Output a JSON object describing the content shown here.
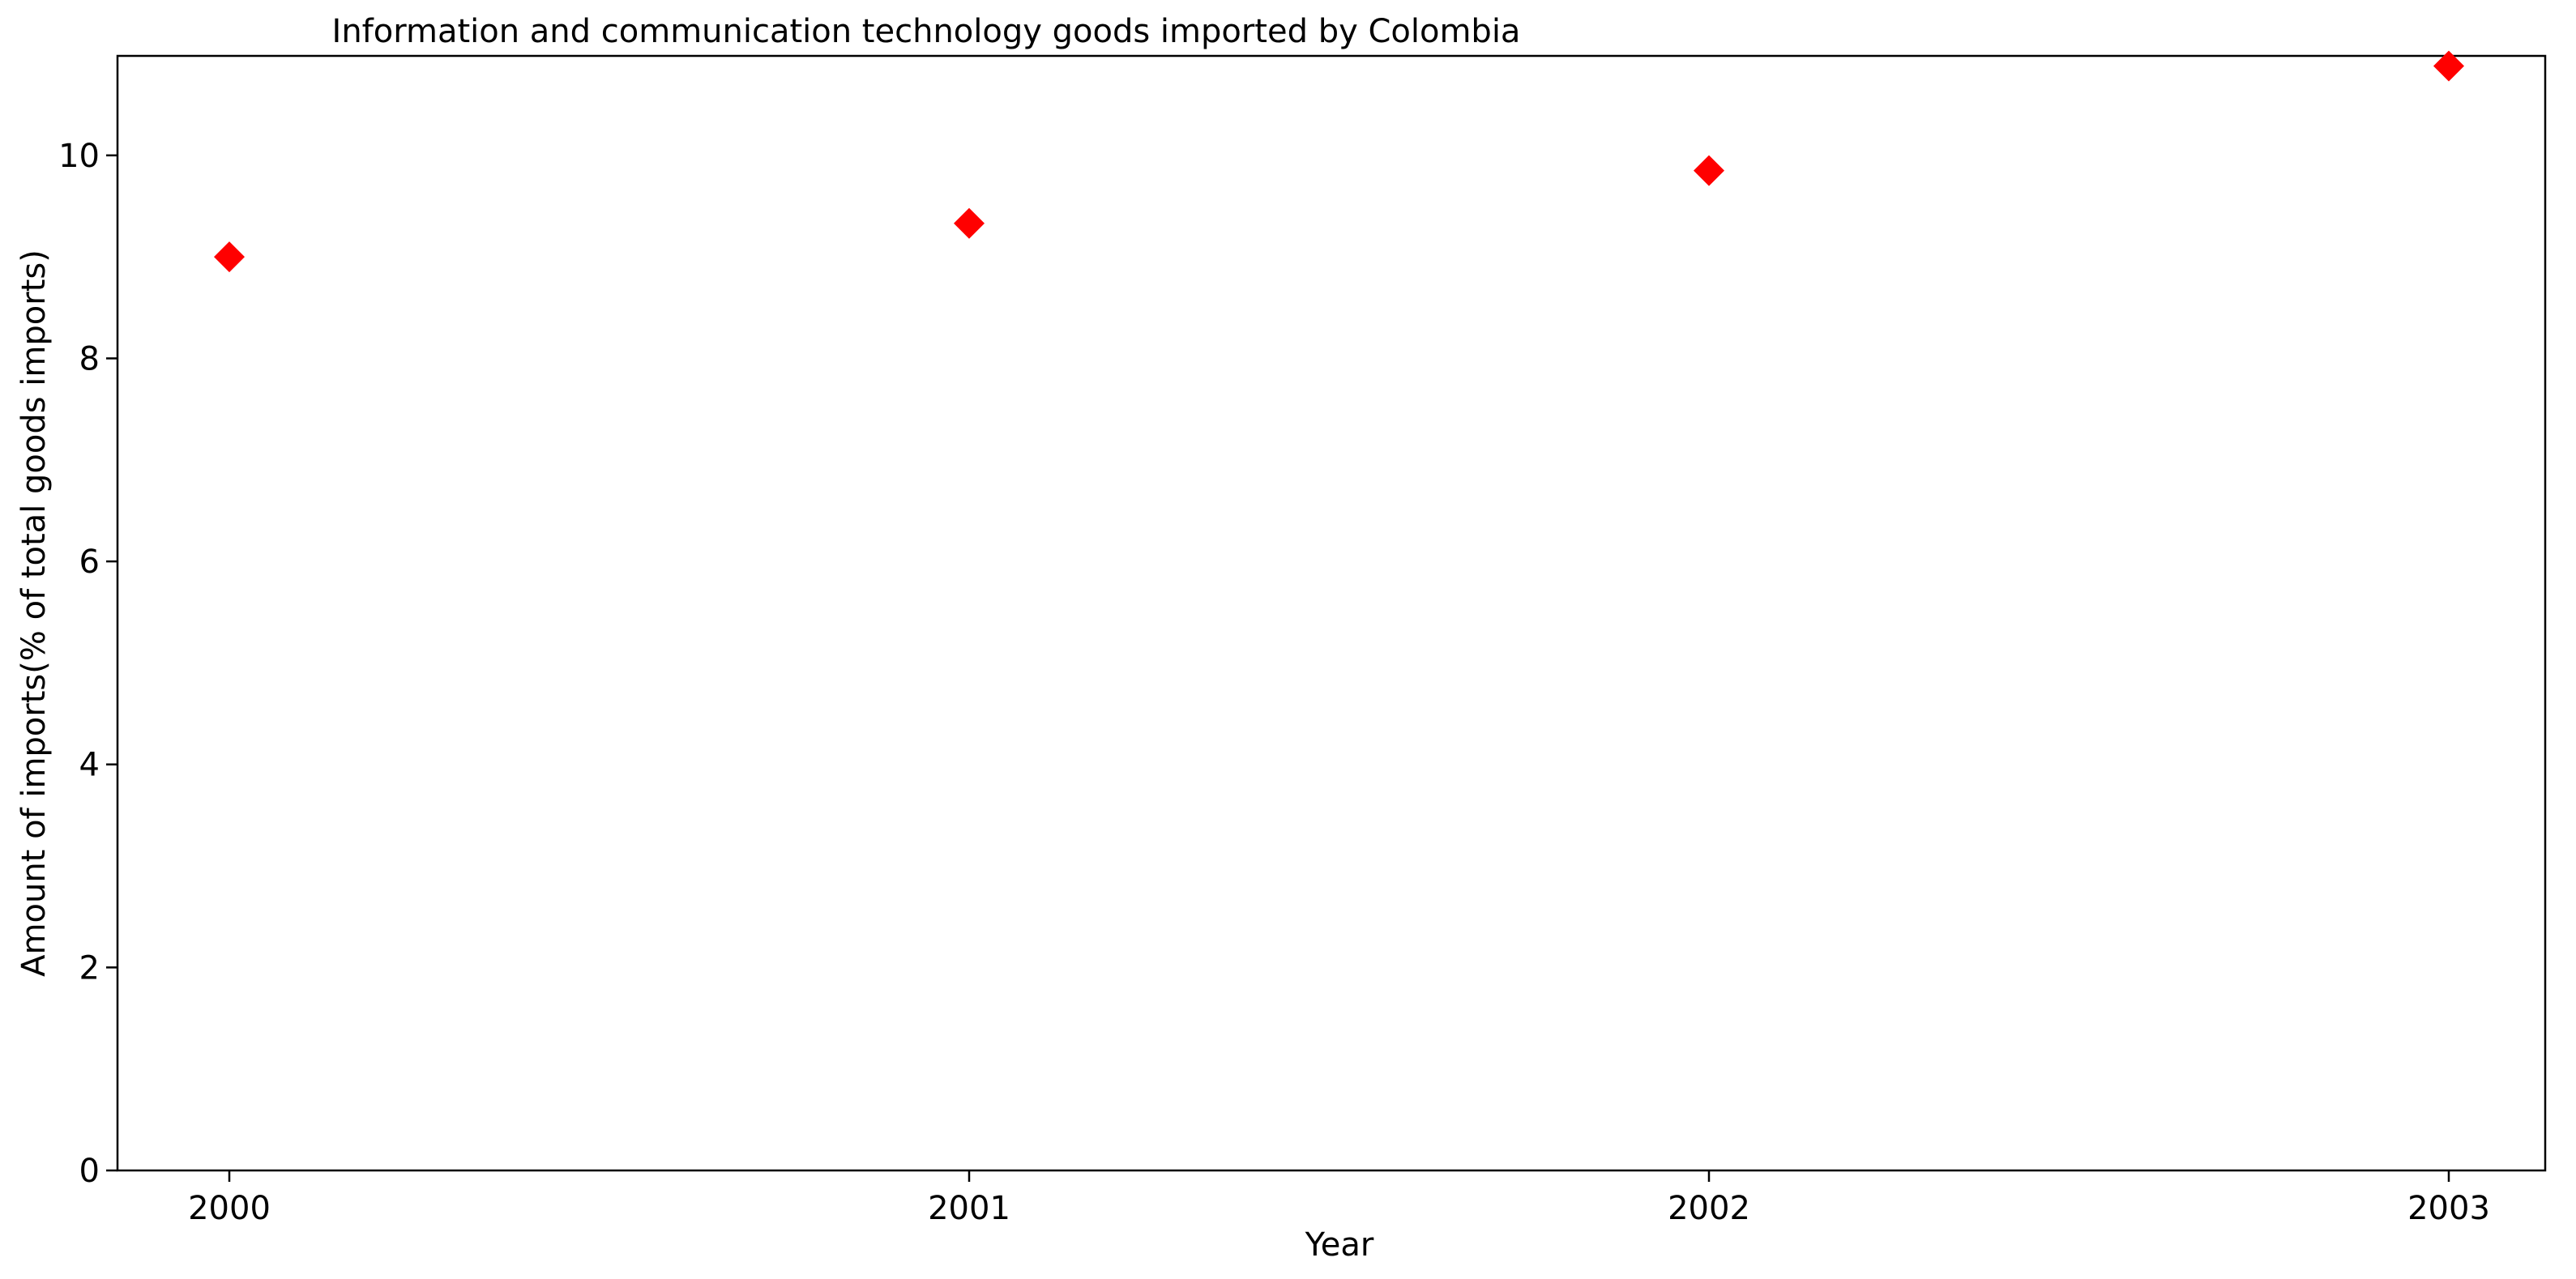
{
  "chart_data": {
    "type": "scatter",
    "title": "Information and communication technology goods imported by Colombia",
    "xlabel": "Year",
    "ylabel": "Amount of imports(% of total goods imports)",
    "categories": [
      "2000",
      "2001",
      "2002",
      "2003"
    ],
    "values": [
      9.0,
      9.33,
      9.85,
      10.88
    ],
    "ylim": [
      0,
      10.98
    ],
    "yticks": [
      "0",
      "2",
      "4",
      "6",
      "8",
      "10"
    ],
    "marker": "diamond",
    "marker_color": "#ff0000",
    "grid": false,
    "legend": "none"
  }
}
